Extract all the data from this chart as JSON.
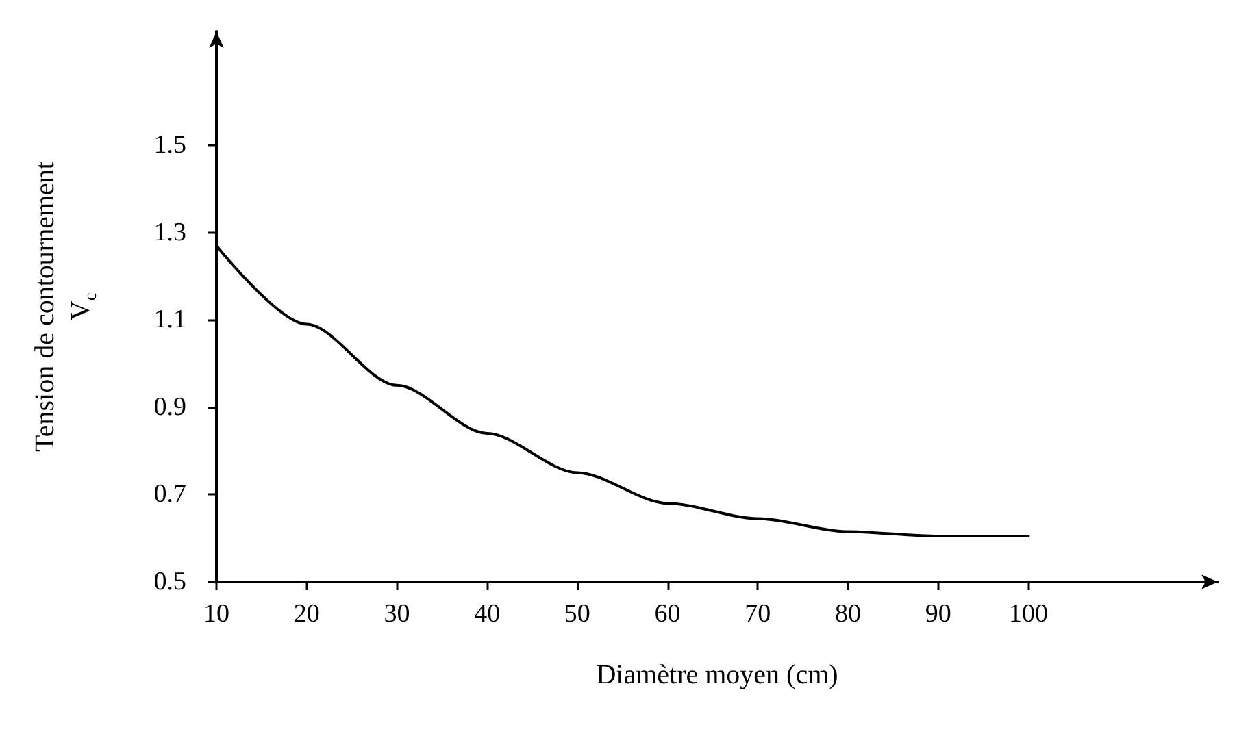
{
  "chart_data": {
    "type": "line",
    "xlabel": "Diamètre moyen (cm)",
    "ylabel": "Tension de contournement\nV$_{c}$",
    "x": [
      10,
      20,
      30,
      40,
      50,
      60,
      70,
      80,
      90,
      100
    ],
    "series": [
      {
        "color": "#000000",
        "values": [
          1.27,
          1.09,
          0.95,
          0.84,
          0.75,
          0.68,
          0.645,
          0.615,
          0.605,
          0.605
        ]
      }
    ],
    "xlim": [
      10,
      121
    ],
    "xticks": [
      10,
      20,
      30,
      40,
      50,
      60,
      70,
      80,
      90,
      100
    ],
    "ylim": [
      0.5,
      1.76
    ],
    "yticks": [
      0.5,
      0.7,
      0.9,
      1.1,
      1.3,
      1.5
    ],
    "grid": false,
    "marker": "none",
    "line_style": "solid"
  }
}
